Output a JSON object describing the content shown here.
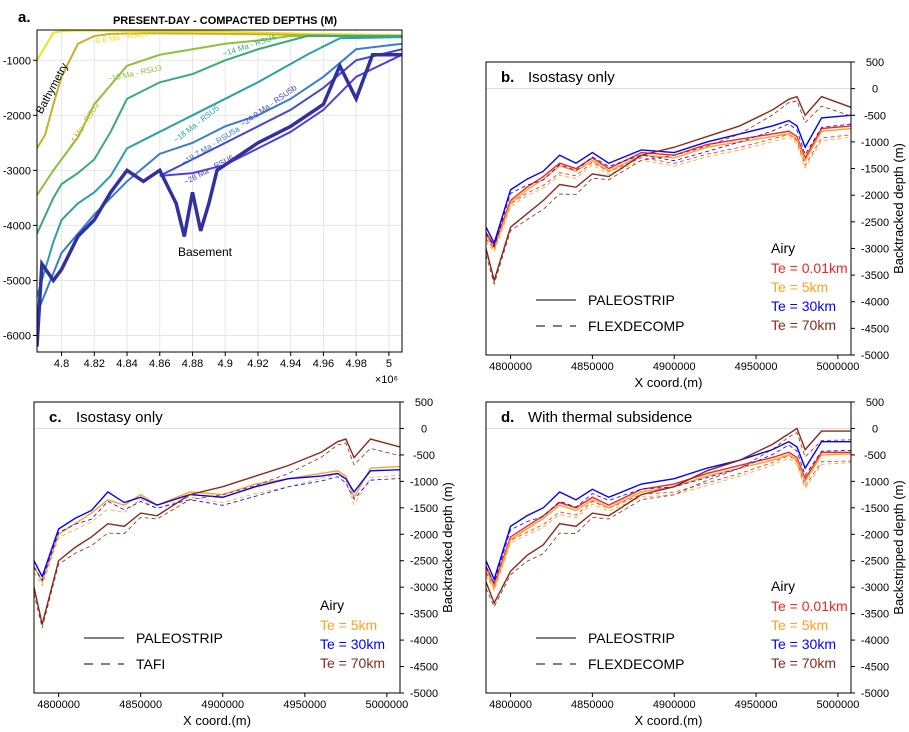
{
  "chart_data": [
    {
      "panel": "a",
      "type": "line",
      "panel_letter": "a.",
      "title": "PRESENT-DAY - COMPACTED DEPTHS (M)",
      "x_exponent": "×10⁶",
      "x_ticks": [
        "4.8",
        "4.82",
        "4.84",
        "4.86",
        "4.88",
        "4.9",
        "4.92",
        "4.94",
        "4.96",
        "4.98",
        "5"
      ],
      "y_ticks": [
        "-1000",
        "-2000",
        "-3000",
        "-4000",
        "-5000",
        "-6000"
      ],
      "xlim": [
        4.785,
        5.008
      ],
      "ylim": [
        -6300,
        -450
      ],
      "grid": true,
      "annotations": [
        "Bathymetry",
        "Basement"
      ],
      "series": [
        {
          "name": "~0.6 Ma - RSU1",
          "color": "#f0e020",
          "x": [
            4.785,
            4.795,
            4.8,
            4.81,
            4.85,
            4.9,
            4.95,
            5.008
          ],
          "y": [
            -1000,
            -500,
            -470,
            -460,
            -470,
            -480,
            -520,
            -540
          ]
        },
        {
          "name": "~4 Ma - RSU2",
          "color": "#c8b028",
          "x": [
            4.785,
            4.79,
            4.795,
            4.8,
            4.81,
            4.82,
            4.83,
            4.85,
            4.9,
            4.95,
            5.008
          ],
          "y": [
            -2600,
            -2350,
            -1800,
            -1300,
            -700,
            -560,
            -520,
            -510,
            -520,
            -540,
            -560
          ]
        },
        {
          "name": "~10 Ma - RSU3",
          "color": "#8cc23c",
          "x": [
            4.785,
            4.795,
            4.8,
            4.81,
            4.82,
            4.84,
            4.86,
            4.88,
            4.9,
            4.92,
            4.94,
            5.008
          ],
          "y": [
            -3450,
            -3000,
            -2800,
            -2400,
            -1800,
            -1100,
            -900,
            -800,
            -700,
            -640,
            -560,
            -560
          ]
        },
        {
          "name": "~14 Ma - RSU4",
          "color": "#3aaa7a",
          "x": [
            4.785,
            4.795,
            4.8,
            4.81,
            4.82,
            4.83,
            4.84,
            4.86,
            4.88,
            4.9,
            4.92,
            4.95,
            5.008
          ],
          "y": [
            -4150,
            -3500,
            -3250,
            -3050,
            -2800,
            -2300,
            -1700,
            -1400,
            -1250,
            -1000,
            -800,
            -560,
            -560
          ]
        },
        {
          "name": "~18 Ma - RSU5",
          "color": "#2aa0a8",
          "x": [
            4.785,
            4.795,
            4.8,
            4.81,
            4.82,
            4.83,
            4.84,
            4.86,
            4.88,
            4.9,
            4.92,
            4.95,
            4.97,
            5.008
          ],
          "y": [
            -5300,
            -4300,
            -3900,
            -3600,
            -3400,
            -3100,
            -2600,
            -2300,
            -2000,
            -1700,
            -1400,
            -900,
            -600,
            -580
          ]
        },
        {
          "name": "~19.7 Ma - RSU5a",
          "color": "#3a7cd0",
          "x": [
            4.785,
            4.8,
            4.82,
            4.84,
            4.86,
            4.88,
            4.9,
            4.92,
            4.94,
            4.96,
            4.98,
            5.008
          ],
          "y": [
            -5600,
            -4500,
            -3800,
            -3200,
            -2700,
            -2500,
            -2200,
            -2000,
            -1700,
            -1300,
            -800,
            -700
          ]
        },
        {
          "name": "~24.9 Ma - RSU5b",
          "color": "#4448c8",
          "x": [
            4.86,
            4.88,
            4.9,
            4.92,
            4.94,
            4.96,
            4.98,
            5.008
          ],
          "y": [
            -3100,
            -2800,
            -2500,
            -2200,
            -1900,
            -1500,
            -1000,
            -800
          ]
        },
        {
          "name": "~28 Ma - RSU6",
          "color": "#5040d8",
          "x": [
            4.86,
            4.88,
            4.9,
            4.92,
            4.94,
            4.96,
            4.98,
            5.008
          ],
          "y": [
            -3100,
            -3050,
            -2900,
            -2600,
            -2300,
            -1900,
            -1300,
            -900
          ]
        },
        {
          "name": "Basement",
          "color": "#3030a0",
          "x": [
            4.785,
            4.788,
            4.795,
            4.8,
            4.81,
            4.82,
            4.83,
            4.84,
            4.85,
            4.86,
            4.87,
            4.875,
            4.88,
            4.885,
            4.89,
            4.895,
            4.9,
            4.92,
            4.94,
            4.96,
            4.97,
            4.98,
            4.99,
            5.008
          ],
          "y": [
            -6200,
            -4700,
            -5000,
            -4800,
            -4200,
            -3900,
            -3400,
            -3000,
            -3200,
            -3000,
            -3600,
            -4200,
            -3400,
            -4100,
            -3600,
            -3000,
            -2900,
            -2500,
            -2200,
            -1800,
            -1100,
            -1700,
            -900,
            -900
          ]
        }
      ]
    },
    {
      "panel": "b",
      "type": "line",
      "panel_letter": "b.",
      "title": "Isostasy only",
      "xlabel": "X coord.(m)",
      "ylabel": "Backtracked depth (m)",
      "x_ticks": [
        "4800000",
        "4850000",
        "4900000",
        "4950000",
        "5000000"
      ],
      "y_ticks": [
        "500",
        "0",
        "-500",
        "-1000",
        "-1500",
        "-2000",
        "-2500",
        "-3000",
        "-3500",
        "-4000",
        "-4500",
        "-5000"
      ],
      "xlim": [
        4785000,
        5008000
      ],
      "ylim": [
        -5000,
        500
      ],
      "legend": {
        "methods": [
          "PALEOSTRIP",
          "FLEXDECOMP"
        ],
        "header": "Airy",
        "entries": [
          "Te = 0.01km",
          "Te = 5km",
          "Te = 30km",
          "Te = 70km"
        ]
      },
      "series": [
        {
          "name": "Te = 0.01km",
          "color": "#ff2020",
          "x": [
            4785000,
            4790000,
            4800000,
            4810000,
            4820000,
            4830000,
            4840000,
            4850000,
            4860000,
            4880000,
            4900000,
            4920000,
            4940000,
            4960000,
            4970000,
            4975000,
            4980000,
            4990000,
            5008000
          ],
          "y": [
            -2700,
            -2950,
            -2100,
            -1850,
            -1650,
            -1400,
            -1500,
            -1300,
            -1500,
            -1200,
            -1250,
            -1050,
            -950,
            -850,
            -800,
            -900,
            -1300,
            -750,
            -700
          ]
        },
        {
          "name": "Te = 5km",
          "color": "#ffa020",
          "x": [
            4785000,
            4790000,
            4800000,
            4810000,
            4820000,
            4830000,
            4840000,
            4850000,
            4860000,
            4880000,
            4900000,
            4920000,
            4940000,
            4960000,
            4970000,
            4975000,
            4980000,
            4990000,
            5008000
          ],
          "y": [
            -2750,
            -3000,
            -2150,
            -1900,
            -1700,
            -1450,
            -1550,
            -1350,
            -1550,
            -1250,
            -1300,
            -1100,
            -1000,
            -900,
            -850,
            -950,
            -1350,
            -800,
            -750
          ]
        },
        {
          "name": "Te = 30km",
          "color": "#0000ff",
          "x": [
            4785000,
            4790000,
            4800000,
            4810000,
            4820000,
            4830000,
            4840000,
            4850000,
            4860000,
            4880000,
            4900000,
            4920000,
            4940000,
            4960000,
            4970000,
            4975000,
            4980000,
            4990000,
            5008000
          ],
          "y": [
            -2600,
            -2900,
            -1900,
            -1700,
            -1550,
            -1250,
            -1400,
            -1200,
            -1400,
            -1150,
            -1200,
            -1000,
            -850,
            -700,
            -600,
            -700,
            -1100,
            -550,
            -500
          ]
        },
        {
          "name": "Te = 70km",
          "color": "#8a2a1a",
          "x": [
            4785000,
            4790000,
            4800000,
            4810000,
            4820000,
            4830000,
            4840000,
            4850000,
            4860000,
            4880000,
            4900000,
            4920000,
            4940000,
            4960000,
            4970000,
            4975000,
            4980000,
            4990000,
            5008000
          ],
          "y": [
            -3000,
            -3600,
            -2600,
            -2350,
            -2100,
            -1800,
            -1850,
            -1600,
            -1650,
            -1250,
            -1100,
            -900,
            -700,
            -400,
            -200,
            -150,
            -500,
            -150,
            -350
          ]
        }
      ]
    },
    {
      "panel": "c",
      "type": "line",
      "panel_letter": "c.",
      "title": "Isostasy only",
      "xlabel": "X coord.(m)",
      "ylabel": "Backtracked depth (m)",
      "x_ticks": [
        "4800000",
        "4850000",
        "4900000",
        "4950000",
        "5000000"
      ],
      "y_ticks": [
        "500",
        "0",
        "-500",
        "-1000",
        "-1500",
        "-2000",
        "-2500",
        "-3000",
        "-3500",
        "-4000",
        "-4500",
        "-5000"
      ],
      "xlim": [
        4785000,
        5008000
      ],
      "ylim": [
        -5000,
        500
      ],
      "legend": {
        "methods": [
          "PALEOSTRIP",
          "TAFI"
        ],
        "header": "Airy",
        "entries": [
          "Te = 5km",
          "Te = 30km",
          "Te = 70km"
        ]
      },
      "series": [
        {
          "name": "Te = 5km",
          "color": "#ffa020",
          "x": [
            4785000,
            4790000,
            4800000,
            4810000,
            4820000,
            4830000,
            4840000,
            4850000,
            4860000,
            4880000,
            4900000,
            4920000,
            4940000,
            4960000,
            4970000,
            4975000,
            4980000,
            4990000,
            5008000
          ],
          "y": [
            -2600,
            -2900,
            -2000,
            -1800,
            -1600,
            -1350,
            -1450,
            -1250,
            -1450,
            -1200,
            -1250,
            -1050,
            -950,
            -850,
            -800,
            -900,
            -1300,
            -750,
            -720
          ]
        },
        {
          "name": "Te = 30km",
          "color": "#0000ff",
          "x": [
            4785000,
            4790000,
            4800000,
            4810000,
            4820000,
            4830000,
            4840000,
            4850000,
            4860000,
            4880000,
            4900000,
            4920000,
            4940000,
            4960000,
            4970000,
            4975000,
            4980000,
            4990000,
            5008000
          ],
          "y": [
            -2500,
            -2800,
            -1900,
            -1700,
            -1550,
            -1200,
            -1400,
            -1300,
            -1450,
            -1250,
            -1300,
            -1100,
            -950,
            -900,
            -850,
            -950,
            -1200,
            -800,
            -780
          ]
        },
        {
          "name": "Te = 70km",
          "color": "#8a2a1a",
          "x": [
            4785000,
            4790000,
            4800000,
            4810000,
            4820000,
            4830000,
            4840000,
            4850000,
            4860000,
            4880000,
            4900000,
            4920000,
            4940000,
            4960000,
            4970000,
            4975000,
            4980000,
            4990000,
            5008000
          ],
          "y": [
            -3000,
            -3700,
            -2500,
            -2250,
            -2050,
            -1800,
            -1850,
            -1600,
            -1650,
            -1250,
            -1100,
            -900,
            -700,
            -450,
            -250,
            -200,
            -550,
            -200,
            -350
          ]
        }
      ]
    },
    {
      "panel": "d",
      "type": "line",
      "panel_letter": "d.",
      "title": "With thermal subsidence",
      "xlabel": "X coord.(m)",
      "ylabel": "Backstripped depth (m)",
      "x_ticks": [
        "4800000",
        "4850000",
        "4900000",
        "4950000",
        "5000000"
      ],
      "y_ticks": [
        "500",
        "0",
        "-500",
        "-1000",
        "-1500",
        "-2000",
        "-2500",
        "-3000",
        "-3500",
        "-4000",
        "-4500",
        "-5000"
      ],
      "xlim": [
        4785000,
        5008000
      ],
      "ylim": [
        -5000,
        500
      ],
      "legend": {
        "methods": [
          "PALEOSTRIP",
          "FLEXDECOMP"
        ],
        "header": "Airy",
        "entries": [
          "Te = 0.01km",
          "Te = 5km",
          "Te = 30km",
          "Te = 70km"
        ]
      },
      "series": [
        {
          "name": "Te = 0.01km",
          "color": "#ff2020",
          "x": [
            4785000,
            4790000,
            4800000,
            4810000,
            4820000,
            4830000,
            4840000,
            4850000,
            4860000,
            4880000,
            4900000,
            4920000,
            4940000,
            4960000,
            4970000,
            4975000,
            4980000,
            4990000,
            5008000
          ],
          "y": [
            -2600,
            -2950,
            -2050,
            -1850,
            -1650,
            -1400,
            -1500,
            -1300,
            -1450,
            -1150,
            -1050,
            -850,
            -700,
            -550,
            -450,
            -550,
            -950,
            -450,
            -450
          ]
        },
        {
          "name": "Te = 5km",
          "color": "#ffa020",
          "x": [
            4785000,
            4790000,
            4800000,
            4810000,
            4820000,
            4830000,
            4840000,
            4850000,
            4860000,
            4880000,
            4900000,
            4920000,
            4940000,
            4960000,
            4970000,
            4975000,
            4980000,
            4990000,
            5008000
          ],
          "y": [
            -2650,
            -3000,
            -2100,
            -1900,
            -1700,
            -1450,
            -1550,
            -1350,
            -1500,
            -1200,
            -1100,
            -900,
            -750,
            -600,
            -500,
            -600,
            -1000,
            -500,
            -480
          ]
        },
        {
          "name": "Te = 30km",
          "color": "#0000ff",
          "x": [
            4785000,
            4790000,
            4800000,
            4810000,
            4820000,
            4830000,
            4840000,
            4850000,
            4860000,
            4880000,
            4900000,
            4920000,
            4940000,
            4960000,
            4970000,
            4975000,
            4980000,
            4990000,
            5008000
          ],
          "y": [
            -2500,
            -2850,
            -1850,
            -1650,
            -1500,
            -1200,
            -1350,
            -1150,
            -1300,
            -1050,
            -950,
            -750,
            -600,
            -400,
            -250,
            -350,
            -750,
            -250,
            -250
          ]
        },
        {
          "name": "Te = 70km",
          "color": "#8a2a1a",
          "x": [
            4785000,
            4790000,
            4800000,
            4810000,
            4820000,
            4830000,
            4840000,
            4850000,
            4860000,
            4880000,
            4900000,
            4920000,
            4940000,
            4960000,
            4970000,
            4975000,
            4980000,
            4990000,
            5008000
          ],
          "y": [
            -2900,
            -3300,
            -2700,
            -2400,
            -2200,
            -1800,
            -1850,
            -1600,
            -1650,
            -1250,
            -1100,
            -800,
            -600,
            -300,
            -100,
            0,
            -400,
            -50,
            -50
          ]
        }
      ]
    }
  ]
}
